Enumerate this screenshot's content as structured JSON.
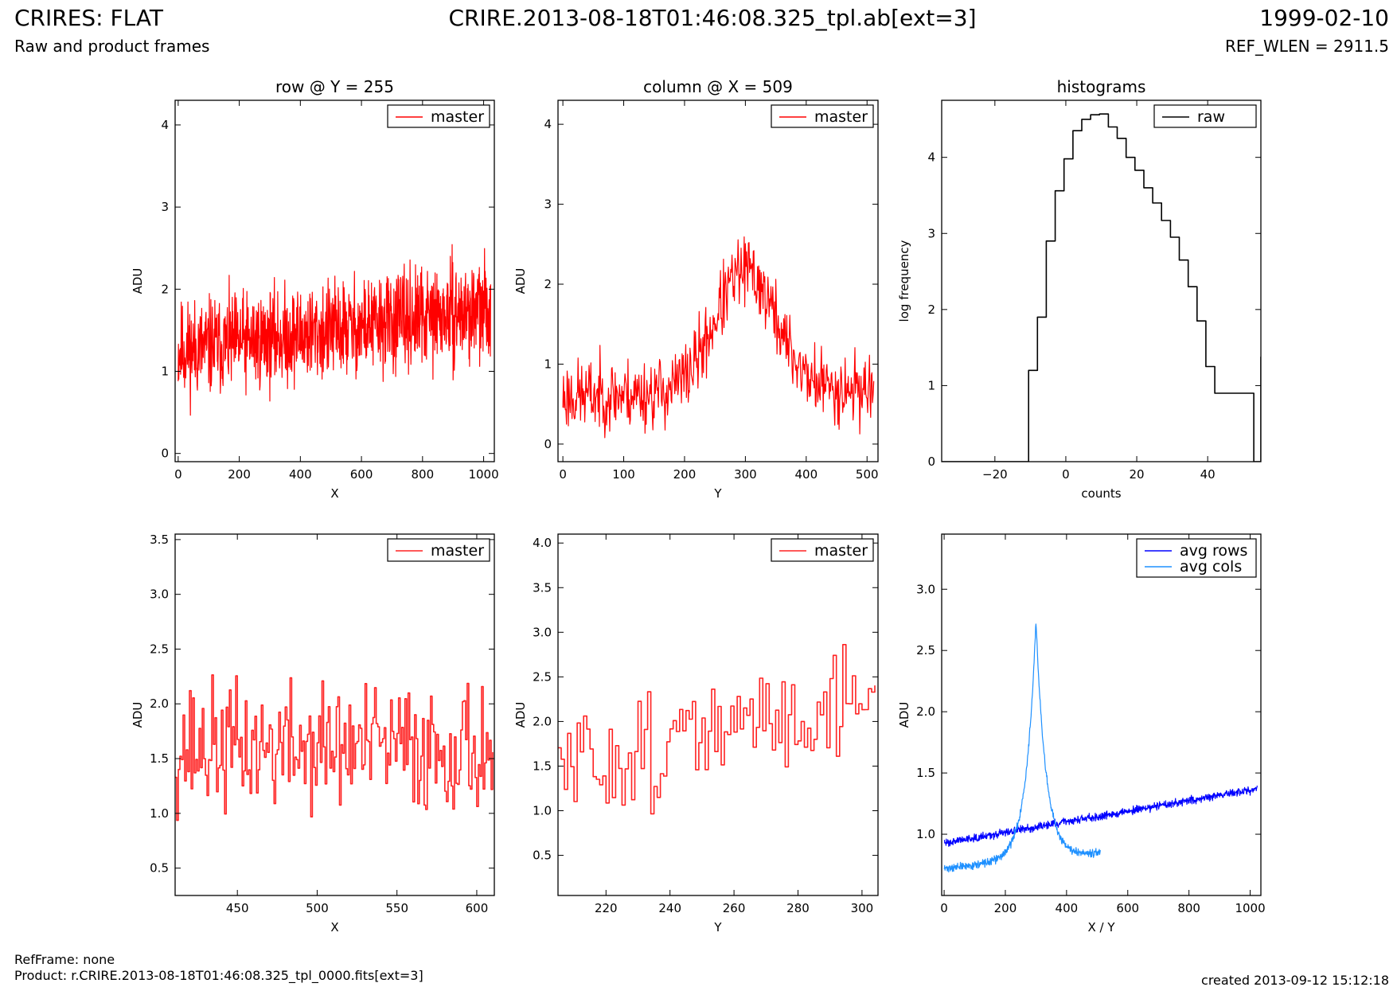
{
  "header": {
    "title": "CRIRES: FLAT",
    "subtitle": "Raw and product frames",
    "file": "CRIRE.2013-08-18T01:46:08.325_tpl.ab[ext=3]",
    "date": "1999-02-10",
    "ref_wlen": "REF_WLEN = 2911.5"
  },
  "footer": {
    "refframe": "RefFrame: none",
    "product": "Product: r.CRIRE.2013-08-18T01:46:08.325_tpl_0000.fits[ext=3]",
    "created": "created 2013-09-12 15:12:18"
  },
  "colors": {
    "master": "#ff0000",
    "raw": "#000000",
    "avg_rows": "#0000ff",
    "avg_cols": "#1e90ff"
  },
  "chart_data": [
    {
      "id": "row_full",
      "type": "line",
      "title": "row @ Y = 255",
      "xlabel": "X",
      "ylabel": "ADU",
      "xlim": [
        -10,
        1035
      ],
      "ylim": [
        -0.1,
        4.3
      ],
      "xticks": [
        0,
        200,
        400,
        600,
        800,
        1000
      ],
      "yticks": [
        0,
        1,
        2,
        3,
        4
      ],
      "legend": {
        "placement": "top-right",
        "entries": [
          "master"
        ]
      },
      "series": [
        {
          "name": "master",
          "color": "#ff0000",
          "generator": {
            "n": 1024,
            "x0": 0,
            "x1": 1023,
            "baseline": [
              1.25,
              1.75
            ],
            "noise": 0.55,
            "seed": 11,
            "clip": [
              0.2,
              3.4
            ]
          }
        }
      ]
    },
    {
      "id": "col_full",
      "type": "line",
      "title": "column @ X = 509",
      "xlabel": "Y",
      "ylabel": "ADU",
      "xlim": [
        -8,
        518
      ],
      "ylim": [
        -0.22,
        4.3
      ],
      "xticks": [
        0,
        100,
        200,
        300,
        400,
        500
      ],
      "yticks": [
        0,
        1,
        2,
        3,
        4
      ],
      "legend": {
        "placement": "top-right",
        "entries": [
          "master"
        ]
      },
      "series": [
        {
          "name": "master",
          "color": "#ff0000",
          "generator": {
            "n": 512,
            "x0": 0,
            "x1": 511,
            "baseline": [
              0.6,
              0.7
            ],
            "peak": {
              "center": 300,
              "width": 70,
              "height": 1.5
            },
            "noise": 0.42,
            "seed": 23,
            "clip": [
              0.08,
              3.35
            ]
          }
        }
      ]
    },
    {
      "id": "hist",
      "type": "line",
      "step": true,
      "title": "histograms",
      "xlabel": "counts",
      "ylabel": "log frequency",
      "xlim": [
        -35,
        55
      ],
      "ylim": [
        0,
        4.75
      ],
      "xticks": [
        -20,
        0,
        20,
        40
      ],
      "yticks": [
        0,
        1,
        2,
        3,
        4
      ],
      "legend": {
        "placement": "top-right",
        "entries": [
          "raw"
        ]
      },
      "series": [
        {
          "name": "raw",
          "color": "#000000",
          "x": [
            -35,
            -10.5,
            -8,
            -5.5,
            -3,
            -0.5,
            2,
            4.5,
            7,
            9.5,
            12,
            14.5,
            17,
            19.5,
            22,
            24.5,
            27,
            29.5,
            32,
            34.5,
            37,
            39.5,
            42,
            53,
            55
          ],
          "y": [
            0,
            1.2,
            1.9,
            2.9,
            3.56,
            3.98,
            4.35,
            4.5,
            4.56,
            4.57,
            4.4,
            4.25,
            4.0,
            3.83,
            3.6,
            3.4,
            3.17,
            2.95,
            2.65,
            2.3,
            1.85,
            1.25,
            0.9,
            0,
            1.38
          ]
        }
      ]
    },
    {
      "id": "row_zoom",
      "type": "line",
      "step": true,
      "title": "",
      "xlabel": "X",
      "ylabel": "ADU",
      "xlim": [
        411,
        611
      ],
      "ylim": [
        0.25,
        3.55
      ],
      "xticks": [
        450,
        500,
        550,
        600
      ],
      "yticks": [
        0.5,
        1.0,
        1.5,
        2.0,
        2.5,
        3.0,
        3.5
      ],
      "legend": {
        "placement": "top-right",
        "entries": [
          "master"
        ]
      },
      "series": [
        {
          "name": "master",
          "color": "#ff2222",
          "generator": {
            "n": 200,
            "x0": 411,
            "x1": 610,
            "baseline": [
              1.6,
              1.6
            ],
            "noise": 0.55,
            "seed": 37,
            "clip": [
              0.5,
              2.85
            ]
          }
        }
      ]
    },
    {
      "id": "col_zoom",
      "type": "line",
      "step": true,
      "title": "",
      "xlabel": "Y",
      "ylabel": "ADU",
      "xlim": [
        205,
        305
      ],
      "ylim": [
        0.05,
        4.1
      ],
      "xticks": [
        220,
        240,
        260,
        280,
        300
      ],
      "yticks": [
        0.5,
        1.0,
        1.5,
        2.0,
        2.5,
        3.0,
        3.5,
        4.0
      ],
      "legend": {
        "placement": "top-right",
        "entries": [
          "master"
        ]
      },
      "series": [
        {
          "name": "master",
          "color": "#ff2222",
          "generator": {
            "n": 100,
            "x0": 205,
            "x1": 304,
            "baseline": [
              1.45,
              2.3
            ],
            "noise": 0.6,
            "seed": 51,
            "clip": [
              0.32,
              3.23
            ]
          }
        }
      ]
    },
    {
      "id": "avgs",
      "type": "line",
      "title": "",
      "xlabel": "X / Y",
      "ylabel": "ADU",
      "xlim": [
        -8,
        1035
      ],
      "ylim": [
        0.5,
        3.45
      ],
      "xticks": [
        0,
        200,
        400,
        600,
        800,
        1000
      ],
      "yticks": [
        1.0,
        1.5,
        2.0,
        2.5,
        3.0
      ],
      "legend": {
        "placement": "top-right",
        "entries": [
          "avg rows",
          "avg cols"
        ]
      },
      "series": [
        {
          "name": "avg rows",
          "color": "#0000ff",
          "generator": {
            "n": 1024,
            "x0": 0,
            "x1": 1023,
            "baseline": [
              0.93,
              1.37
            ],
            "noise": 0.03,
            "seed": 63
          }
        },
        {
          "name": "avg cols",
          "color": "#1e90ff",
          "generator": {
            "n": 512,
            "x0": 0,
            "x1": 511,
            "baseline": [
              0.72,
              0.85
            ],
            "cusp": {
              "center": 300,
              "height": 1.95,
              "scale": 32
            },
            "noise": 0.03,
            "seed": 71
          }
        }
      ]
    }
  ]
}
